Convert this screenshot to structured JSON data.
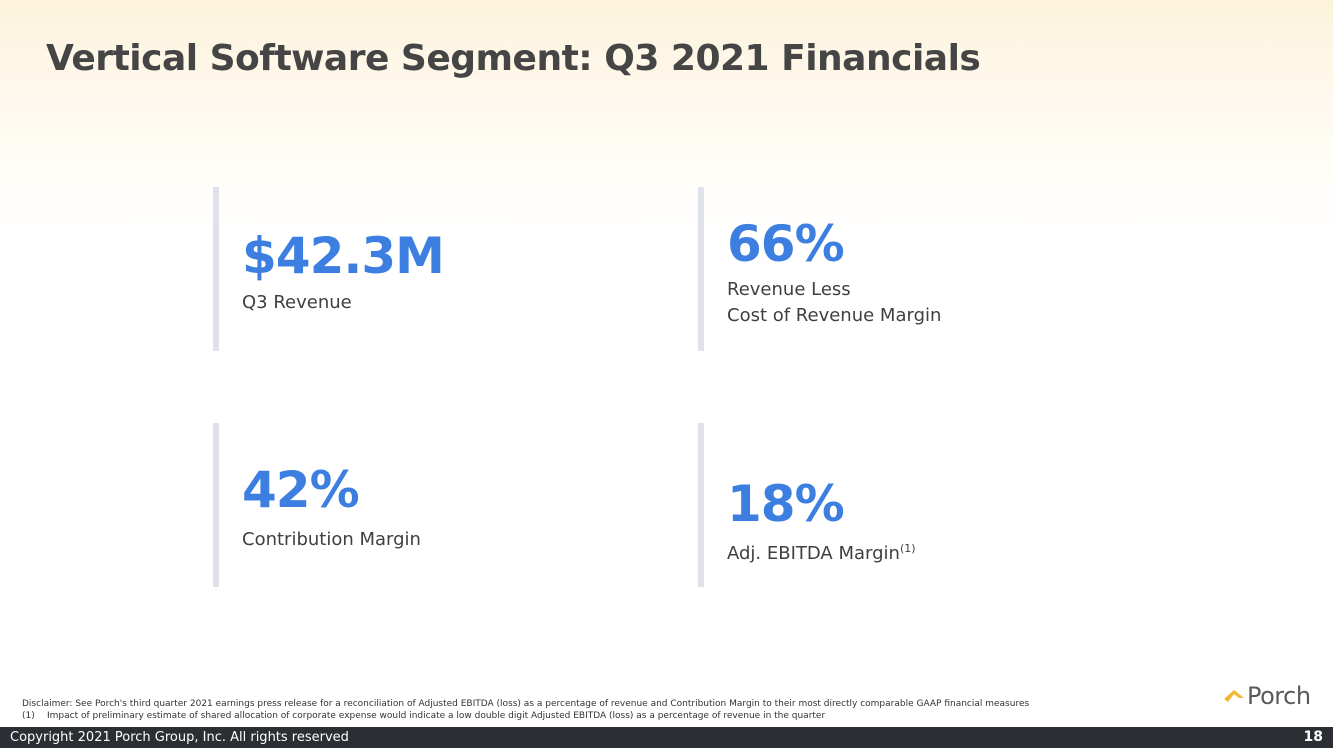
{
  "slide": {
    "title": "Vertical Software Segment: Q3 2021 Financials"
  },
  "metrics": [
    {
      "value": "$42.3M",
      "label_lines": [
        "Q3 Revenue"
      ]
    },
    {
      "value": "66%",
      "label_lines": [
        "Revenue Less",
        "Cost of Revenue Margin"
      ]
    },
    {
      "value": "42%",
      "label_lines": [
        "Contribution Margin"
      ]
    },
    {
      "value": "18%",
      "label_lines": [
        "Adj. EBITDA Margin"
      ],
      "footnote_ref": "(1)"
    }
  ],
  "disclaimer": {
    "text": "Disclaimer: See Porch's third quarter 2021 earnings press release for a reconciliation of Adjusted EBITDA (loss) as a percentage of revenue and Contribution Margin to their most directly comparable GAAP financial measures",
    "footnote_marker": "(1)",
    "footnote_text": "Impact of preliminary estimate of shared allocation of corporate expense would indicate a low double digit Adjusted EBITDA (loss) as a percentage of revenue in the quarter"
  },
  "logo": {
    "icon": "porch-roof-icon",
    "text": "Porch",
    "accent_color": "#f2b733"
  },
  "footer": {
    "copyright": "Copyright 2021 Porch Group, Inc. All rights reserved",
    "page_number": "18"
  },
  "colors": {
    "value_blue": "#3d7fe0",
    "bar_gray": "#dfe2ea",
    "footer_bg": "#2b2e33"
  }
}
